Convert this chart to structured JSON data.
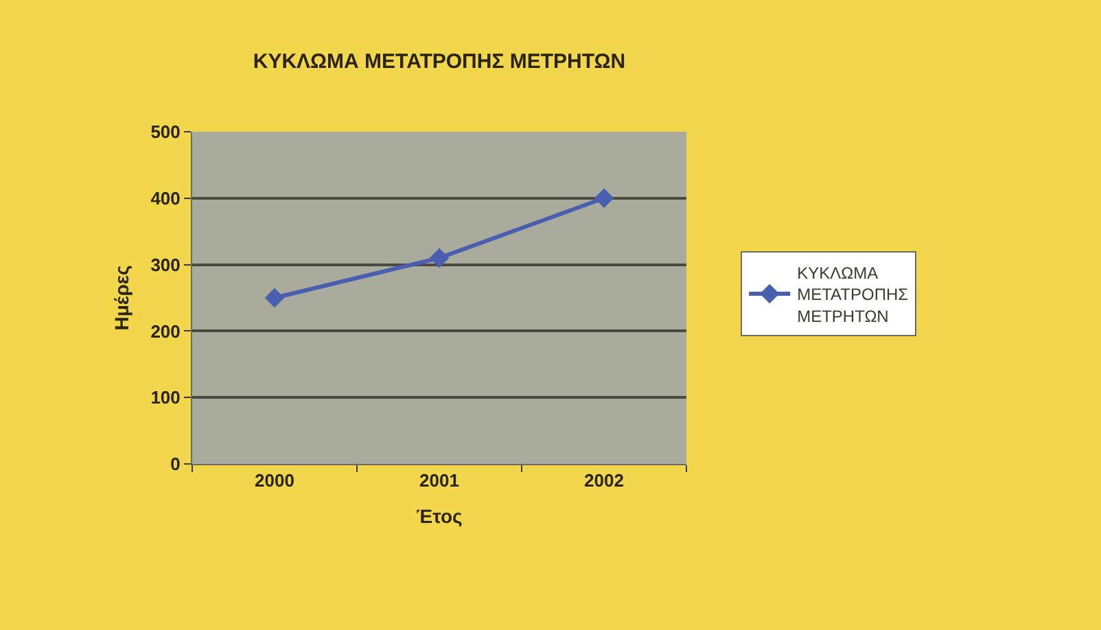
{
  "chart_data": {
    "type": "line",
    "title": "ΚΥΚΛΩΜΑ ΜΕΤΑΤΡΟΠΗΣ ΜΕΤΡΗΤΩΝ",
    "xlabel": "Έτος",
    "ylabel": "Ημέρες",
    "categories": [
      "2000",
      "2001",
      "2002"
    ],
    "series": [
      {
        "name": "ΚΥΚΛΩΜΑ ΜΕΤΑΤΡΟΠΗΣ ΜΕΤΡΗΤΩΝ",
        "color": "#4a5fb0",
        "values": [
          250,
          310,
          400
        ]
      }
    ],
    "ylim": [
      0,
      500
    ],
    "yticks": [
      0,
      100,
      200,
      300,
      400,
      500
    ],
    "grid": "y",
    "legend": "right",
    "marker": "diamond",
    "line_style": "solid"
  }
}
